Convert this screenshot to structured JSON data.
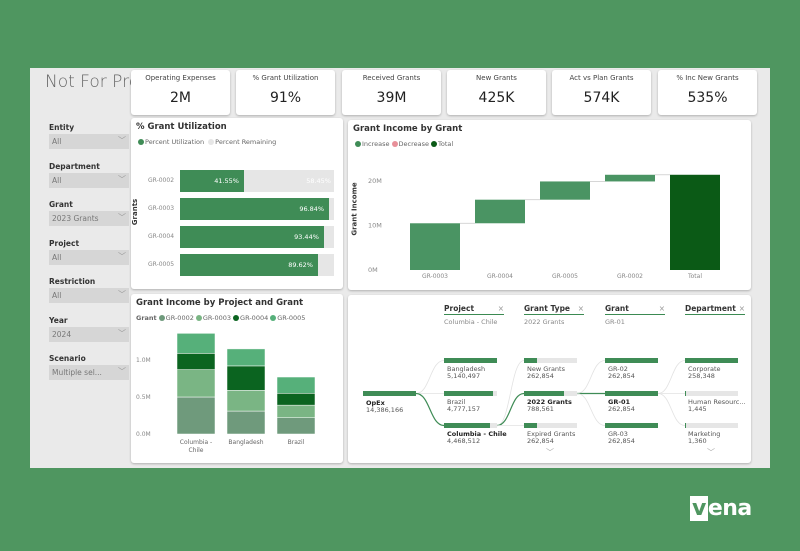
{
  "title": "Not For Profit",
  "slicers": [
    {
      "label": "Entity",
      "value": "All"
    },
    {
      "label": "Department",
      "value": "All"
    },
    {
      "label": "Grant",
      "value": "2023 Grants"
    },
    {
      "label": "Project",
      "value": "All"
    },
    {
      "label": "Restriction",
      "value": "All"
    },
    {
      "label": "Year",
      "value": "2024"
    },
    {
      "label": "Scenario",
      "value": "Multiple sel..."
    }
  ],
  "kpis": [
    {
      "label": "Operating Expenses",
      "value": "2M"
    },
    {
      "label": "% Grant Utilization",
      "value": "91%"
    },
    {
      "label": "Received Grants",
      "value": "39M"
    },
    {
      "label": "New Grants",
      "value": "425K"
    },
    {
      "label": "Act vs Plan Grants",
      "value": "574K"
    },
    {
      "label": "% Inc New Grants",
      "value": "535%"
    }
  ],
  "colors": {
    "background": "#4f9660",
    "primary": "#3f8c56",
    "total": "#0b5a16",
    "decrease": "#e8909a",
    "remaining": "#e6e6e6"
  },
  "utilization": {
    "title": "% Grant Utilization",
    "legend": [
      "Percent Utilization",
      "Percent Remaining"
    ],
    "ylabel": "Grants",
    "rows": [
      {
        "grant": "GR-0002",
        "used": 41.55,
        "used_label": "41.55%",
        "rem_label": "58.45%"
      },
      {
        "grant": "GR-0003",
        "used": 96.84,
        "used_label": "96.84%"
      },
      {
        "grant": "GR-0004",
        "used": 93.44,
        "used_label": "93.44%"
      },
      {
        "grant": "GR-0005",
        "used": 89.62,
        "used_label": "89.62%"
      }
    ]
  },
  "waterfall": {
    "title": "Grant Income by Grant",
    "legend": [
      "Increase",
      "Decrease",
      "Total"
    ],
    "ylabel": "Grant Income",
    "yticks": [
      "0M",
      "10M",
      "20M"
    ],
    "ymax": 24,
    "items": [
      {
        "label": "GR-0003",
        "start": 0,
        "end": 10.5
      },
      {
        "label": "GR-0004",
        "start": 10.5,
        "end": 15.8
      },
      {
        "label": "GR-0005",
        "start": 15.8,
        "end": 19.9
      },
      {
        "label": "GR-0002",
        "start": 19.9,
        "end": 21.4
      },
      {
        "label": "Total",
        "start": 0,
        "end": 21.4,
        "total": true
      }
    ]
  },
  "stacked": {
    "title": "Grant Income by Project and Grant",
    "legend_title": "Grant",
    "series": [
      {
        "name": "GR-0002",
        "color": "#6f9a7c",
        "values": [
          0.5,
          0.31,
          0.22
        ]
      },
      {
        "name": "GR-0003",
        "color": "#7ab584",
        "values": [
          0.37,
          0.28,
          0.17
        ]
      },
      {
        "name": "GR-0004",
        "color": "#0b6420",
        "values": [
          0.22,
          0.33,
          0.16
        ]
      },
      {
        "name": "GR-0005",
        "color": "#56b07a",
        "values": [
          0.27,
          0.23,
          0.22
        ]
      }
    ],
    "categories": [
      "Columbia - Chile",
      "Bangladesh",
      "Brazil"
    ],
    "yticks": [
      "0.0M",
      "0.5M",
      "1.0M"
    ],
    "ymax": 1.45
  },
  "decomp": {
    "root": {
      "label": "OpEx",
      "value": "14,386,166"
    },
    "columns": [
      {
        "header": "Project",
        "selected": "Columbia - Chile",
        "items": [
          {
            "label": "Bangladesh",
            "value": "5,140,497",
            "frac": 1
          },
          {
            "label": "Brazil",
            "value": "4,777,157",
            "frac": 0.93
          },
          {
            "label": "Columbia - Chile",
            "value": "4,468,512",
            "frac": 0.87,
            "bold": true
          }
        ]
      },
      {
        "header": "Grant Type",
        "selected": "2022 Grants",
        "items": [
          {
            "label": "New Grants",
            "value": "262,854",
            "frac": 0.25
          },
          {
            "label": "2022 Grants",
            "value": "788,561",
            "frac": 0.75,
            "bold": true
          },
          {
            "label": "Expired Grants",
            "value": "262,854",
            "frac": 0.25
          }
        ]
      },
      {
        "header": "Grant",
        "selected": "GR-01",
        "items": [
          {
            "label": "GR-02",
            "value": "262,854",
            "frac": 1
          },
          {
            "label": "GR-01",
            "value": "262,854",
            "frac": 1,
            "bold": true
          },
          {
            "label": "GR-03",
            "value": "262,854",
            "frac": 1
          }
        ]
      },
      {
        "header": "Department",
        "selected": "",
        "items": [
          {
            "label": "Corporate",
            "value": "258,348",
            "frac": 1
          },
          {
            "label": "Human Resourc...",
            "value": "1,445",
            "frac": 0.01
          },
          {
            "label": "Marketing",
            "value": "1,360",
            "frac": 0.01
          }
        ]
      }
    ]
  },
  "logo": "vena"
}
